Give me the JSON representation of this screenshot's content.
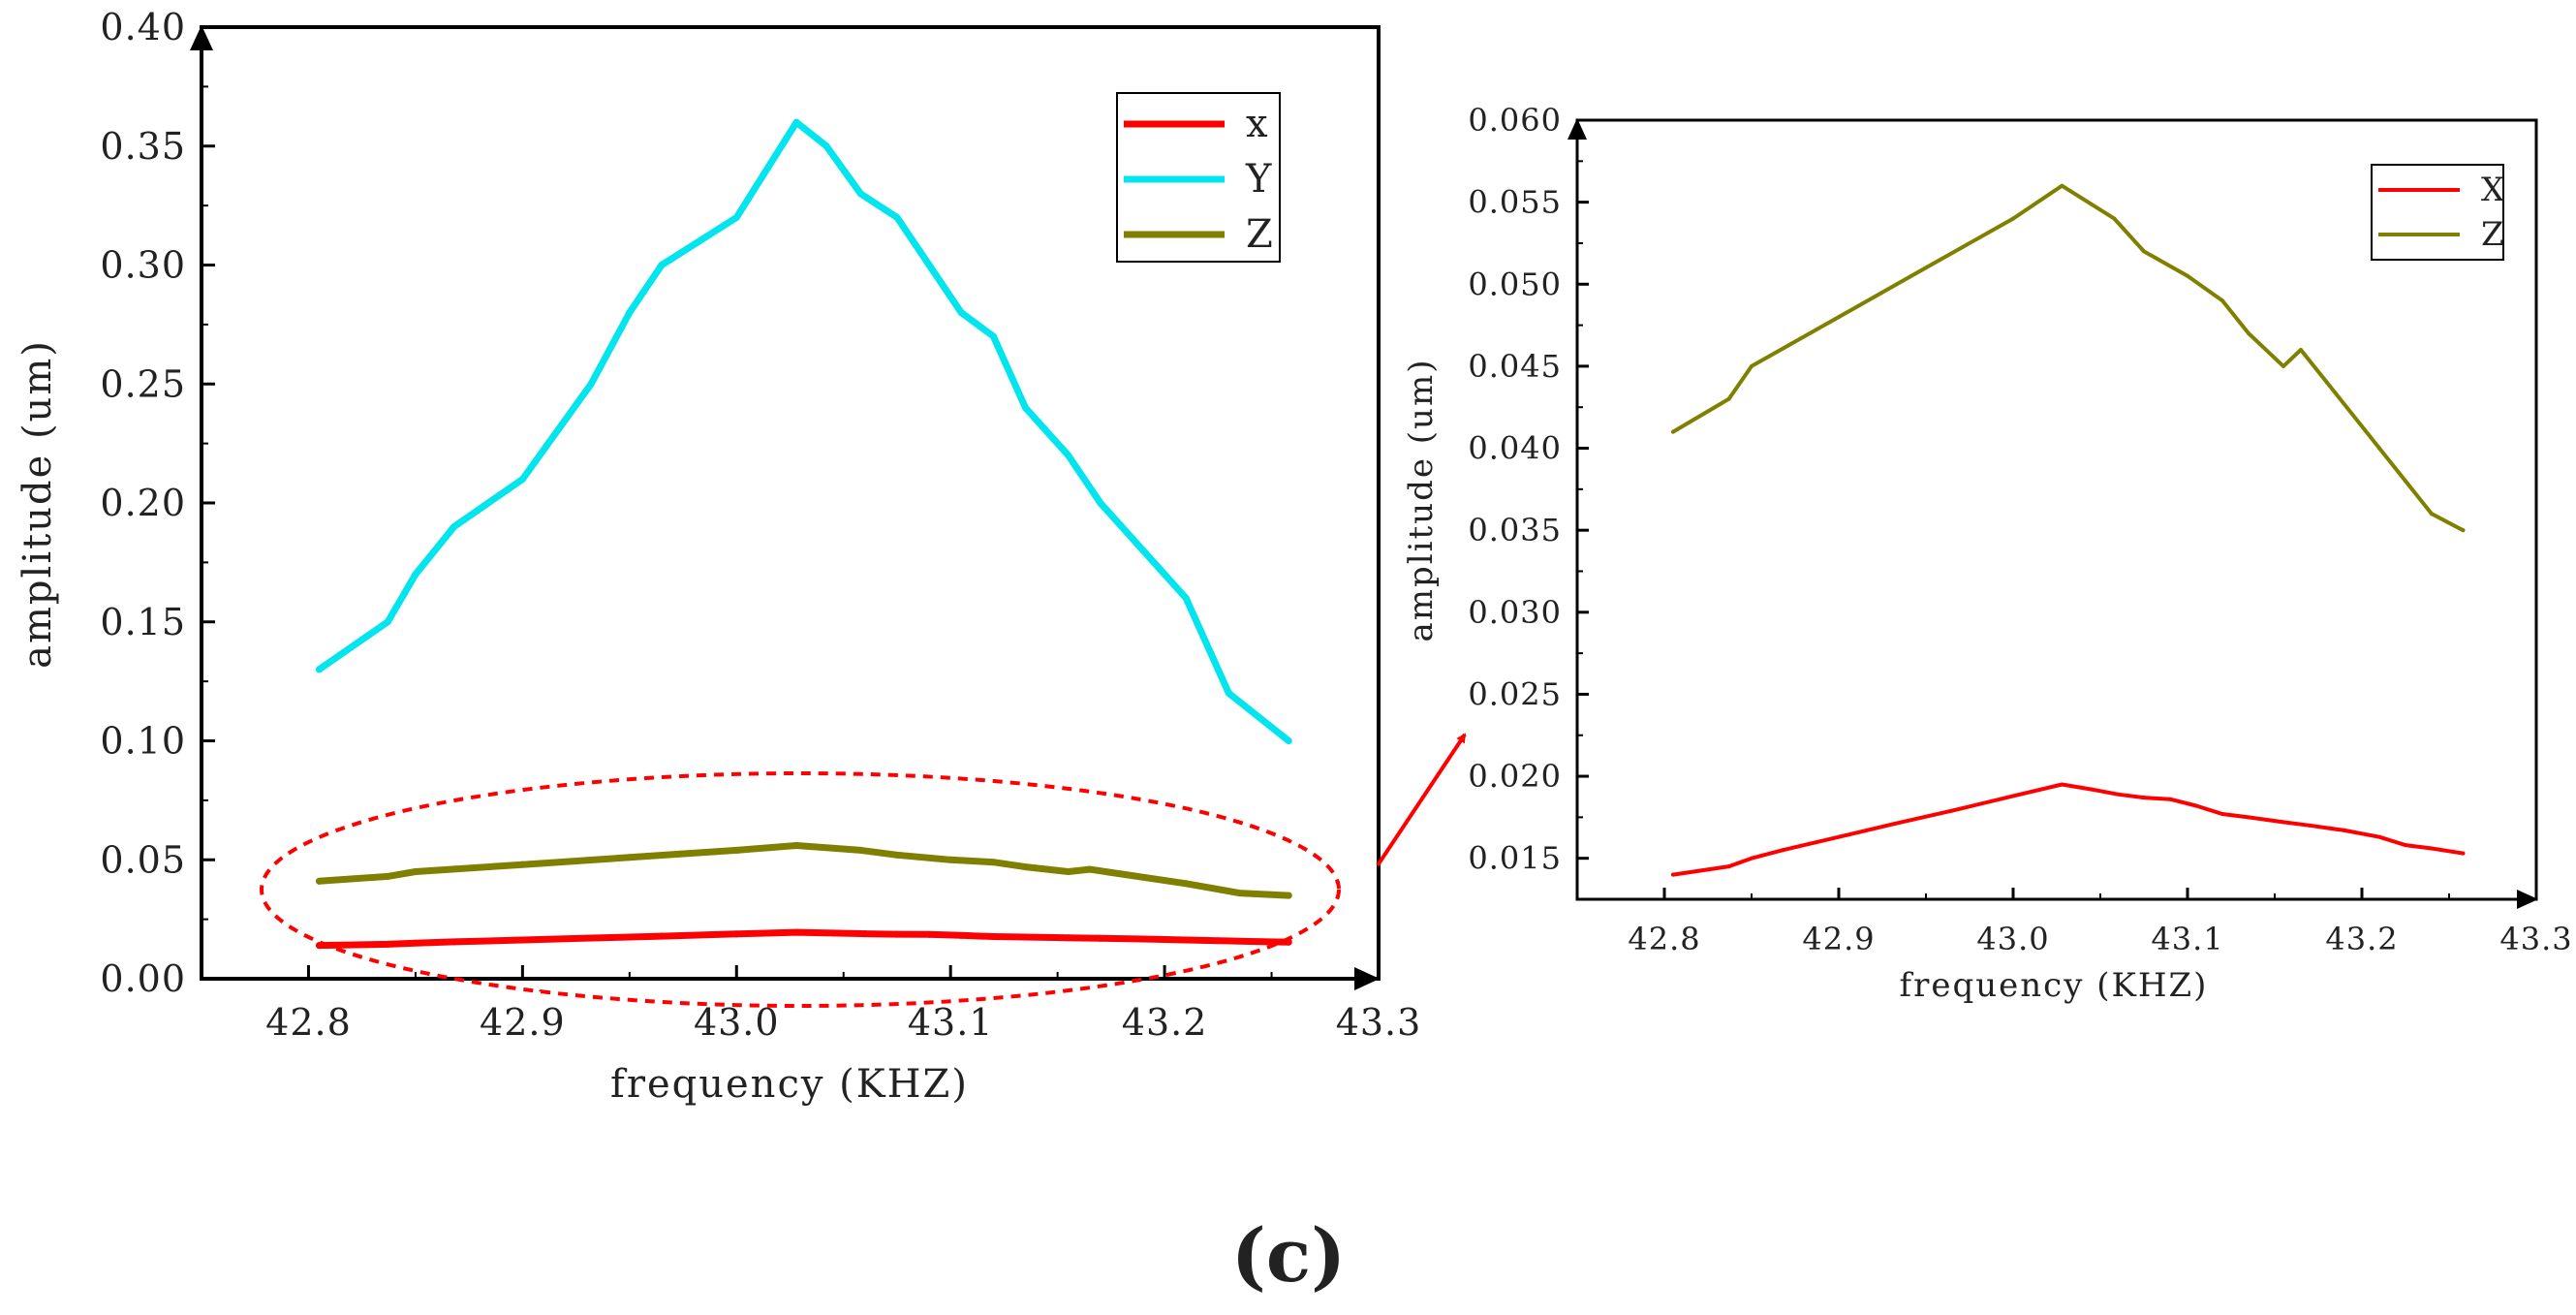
{
  "chart_data": [
    {
      "type": "line",
      "title": "",
      "xlabel": "frequency (KHZ)",
      "ylabel": "amplitude (um)",
      "xlim": [
        42.75,
        43.3
      ],
      "ylim": [
        0,
        0.4
      ],
      "xticks": [
        "42.8",
        "42.9",
        "43.0",
        "43.1",
        "43.2",
        "43.3"
      ],
      "yticks": [
        "0.00",
        "0.05",
        "0.10",
        "0.15",
        "0.20",
        "0.25",
        "0.30",
        "0.35",
        "0.40"
      ],
      "grid": false,
      "legend_position": "top-right",
      "highlight": "dashed red ellipse around X and Z curves",
      "series": [
        {
          "name": "x",
          "color": "#ff0000",
          "x": [
            42.805,
            42.837,
            42.85,
            42.868,
            42.9,
            42.932,
            42.965,
            43.0,
            43.028,
            43.045,
            43.06,
            43.075,
            43.09,
            43.105,
            43.12,
            43.135,
            43.155,
            43.17,
            43.19,
            43.21,
            43.225,
            43.24,
            43.258
          ],
          "values": [
            0.014,
            0.0145,
            0.015,
            0.0155,
            0.0163,
            0.0171,
            0.0179,
            0.0188,
            0.0195,
            0.0192,
            0.0189,
            0.0187,
            0.0186,
            0.0182,
            0.0177,
            0.0175,
            0.0172,
            0.017,
            0.0167,
            0.0163,
            0.016,
            0.0157,
            0.0154
          ]
        },
        {
          "name": "Y",
          "color": "#00e5ee",
          "x": [
            42.805,
            42.837,
            42.85,
            42.868,
            42.9,
            42.932,
            42.95,
            42.965,
            43.0,
            43.028,
            43.042,
            43.058,
            43.075,
            43.09,
            43.105,
            43.12,
            43.135,
            43.155,
            43.17,
            43.19,
            43.21,
            43.23,
            43.258
          ],
          "values": [
            0.13,
            0.15,
            0.17,
            0.19,
            0.21,
            0.25,
            0.28,
            0.3,
            0.32,
            0.36,
            0.35,
            0.33,
            0.32,
            0.3,
            0.28,
            0.27,
            0.24,
            0.22,
            0.2,
            0.18,
            0.16,
            0.12,
            0.1
          ]
        },
        {
          "name": "Z",
          "color": "#808000",
          "x": [
            42.805,
            42.837,
            42.85,
            42.9,
            42.95,
            43.0,
            43.028,
            43.058,
            43.075,
            43.1,
            43.12,
            43.135,
            43.155,
            43.165,
            43.18,
            43.21,
            43.235,
            43.258
          ],
          "values": [
            0.041,
            0.043,
            0.045,
            0.048,
            0.051,
            0.054,
            0.056,
            0.054,
            0.052,
            0.05,
            0.049,
            0.047,
            0.045,
            0.046,
            0.044,
            0.04,
            0.036,
            0.035
          ]
        }
      ]
    },
    {
      "type": "line",
      "title": "",
      "xlabel": "frequency (KHZ)",
      "ylabel": "amplitude (um)",
      "xlim": [
        42.75,
        43.3
      ],
      "ylim": [
        0.0125,
        0.06
      ],
      "xticks": [
        "42.8",
        "42.9",
        "43.0",
        "43.1",
        "43.2",
        "43.3"
      ],
      "yticks": [
        "0.015",
        "0.020",
        "0.025",
        "0.030",
        "0.035",
        "0.040",
        "0.045",
        "0.050",
        "0.055",
        "0.060"
      ],
      "grid": false,
      "legend_position": "top-right",
      "series": [
        {
          "name": "X",
          "color": "#ff0000",
          "x": [
            42.805,
            42.837,
            42.85,
            42.868,
            42.9,
            42.932,
            42.965,
            43.0,
            43.028,
            43.045,
            43.06,
            43.075,
            43.09,
            43.105,
            43.12,
            43.135,
            43.155,
            43.17,
            43.19,
            43.21,
            43.225,
            43.24,
            43.258
          ],
          "values": [
            0.014,
            0.0145,
            0.015,
            0.0155,
            0.0163,
            0.0171,
            0.0179,
            0.0188,
            0.0195,
            0.0192,
            0.0189,
            0.0187,
            0.0186,
            0.0182,
            0.0177,
            0.0175,
            0.0172,
            0.017,
            0.0167,
            0.0163,
            0.0158,
            0.0156,
            0.0153
          ]
        },
        {
          "name": "Z",
          "color": "#808000",
          "x": [
            42.805,
            42.837,
            42.85,
            42.9,
            42.95,
            43.0,
            43.028,
            43.058,
            43.075,
            43.1,
            43.12,
            43.135,
            43.155,
            43.165,
            43.18,
            43.21,
            43.225,
            43.24,
            43.258
          ],
          "values": [
            0.041,
            0.043,
            0.045,
            0.048,
            0.051,
            0.054,
            0.056,
            0.054,
            0.052,
            0.0505,
            0.049,
            0.047,
            0.045,
            0.046,
            0.044,
            0.04,
            0.038,
            0.036,
            0.035
          ]
        }
      ]
    }
  ],
  "caption": "(c)"
}
